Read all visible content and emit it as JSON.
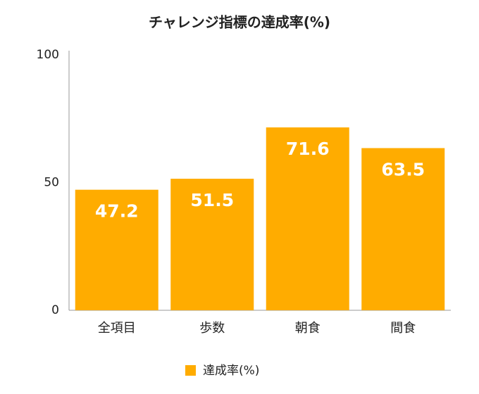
{
  "chart_data": {
    "type": "bar",
    "title": "チャレンジ指標の達成率(%)",
    "categories": [
      "全項目",
      "歩数",
      "朝食",
      "間食"
    ],
    "series": [
      {
        "name": "達成率(%)",
        "color": "#ffac00",
        "values": [
          47.2,
          51.5,
          71.6,
          63.5
        ]
      }
    ],
    "ylim": [
      0,
      100
    ],
    "yticks": [
      0,
      50,
      100
    ],
    "grid": false,
    "legend": "bottom"
  }
}
